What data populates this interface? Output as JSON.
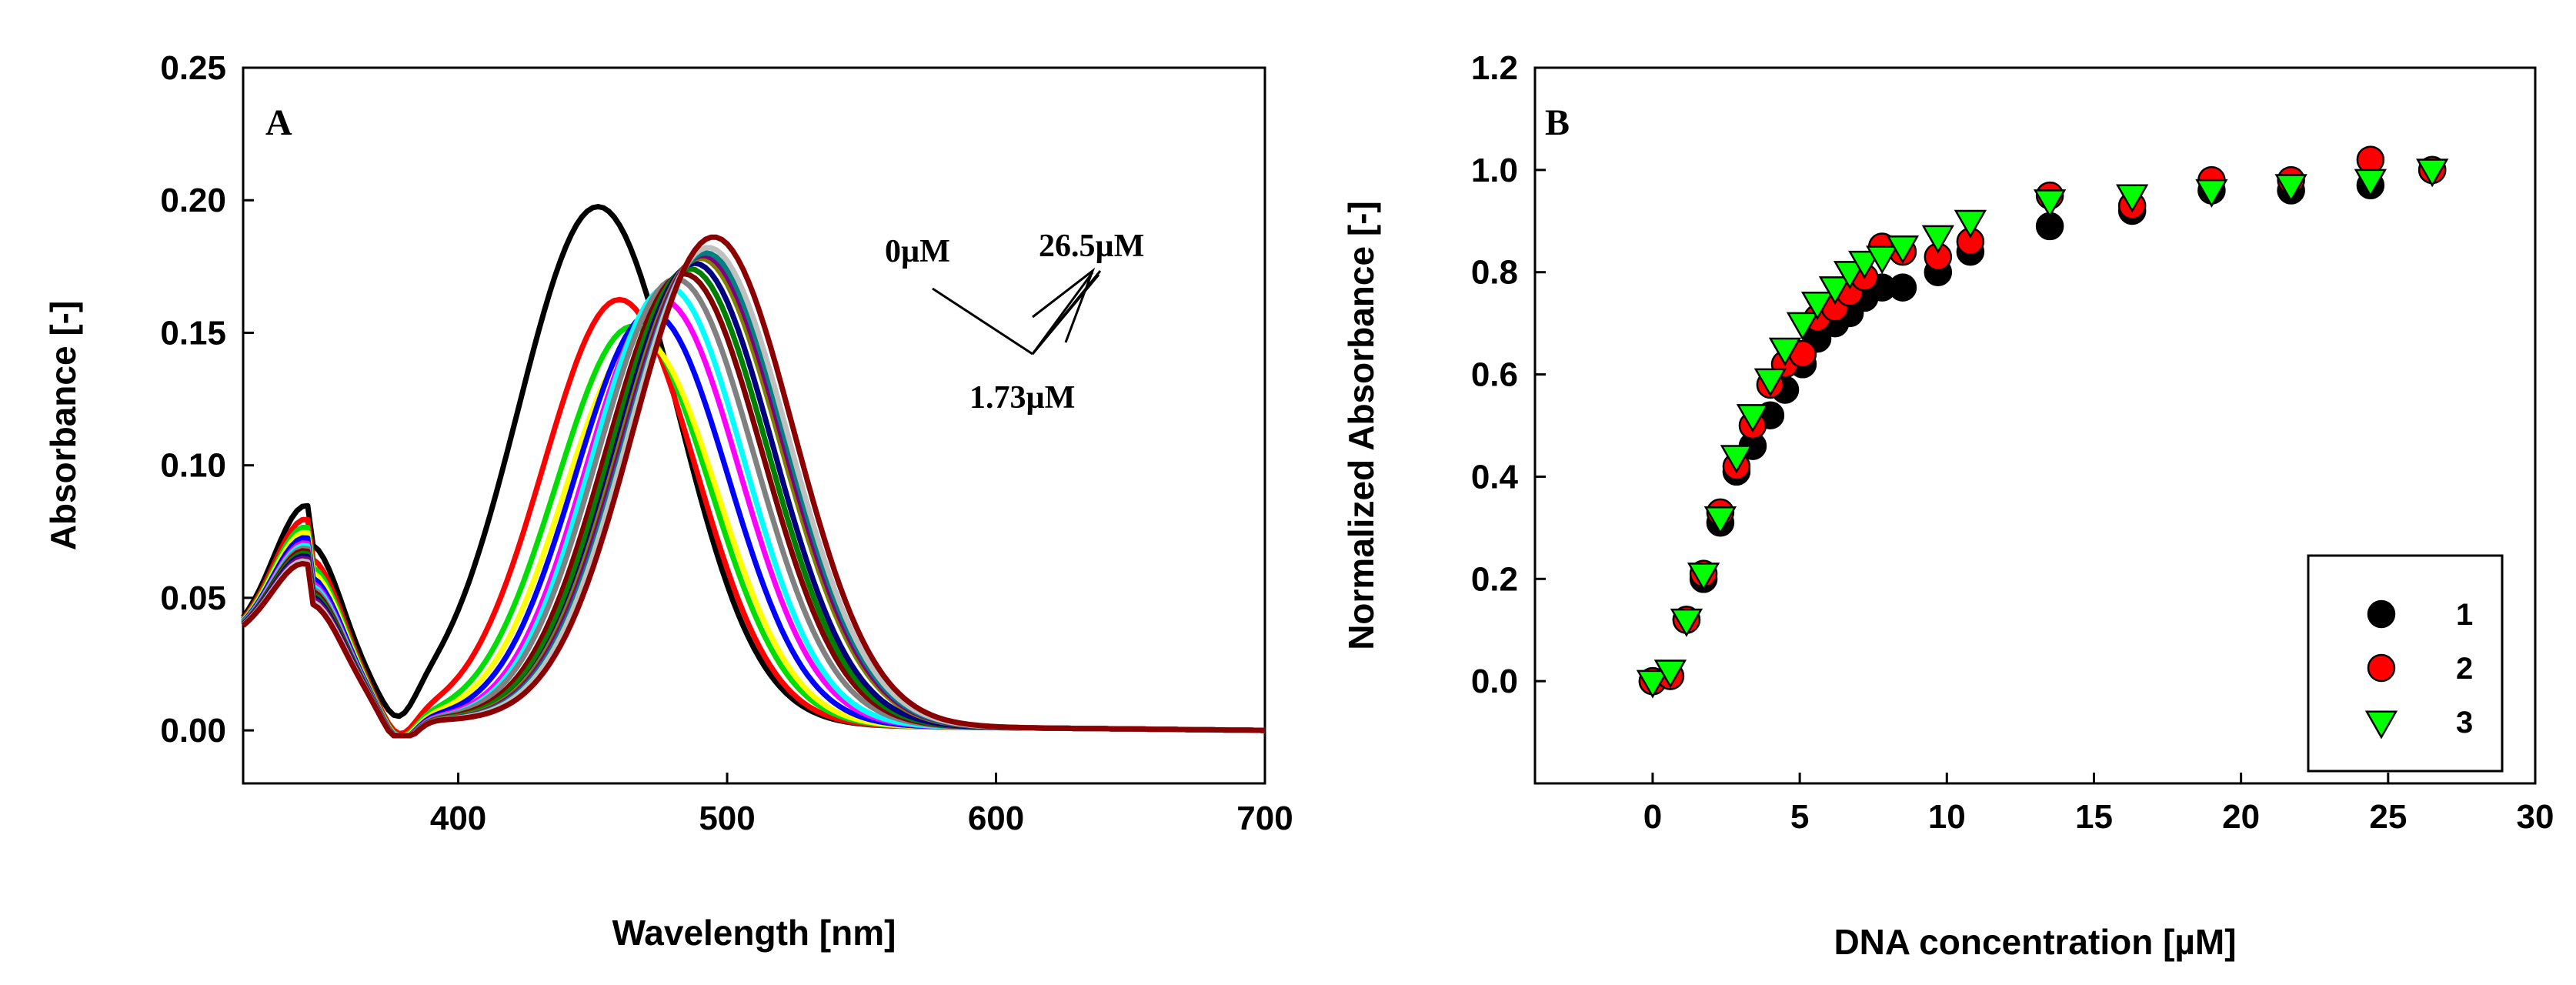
{
  "chart_data": [
    {
      "panel": "A",
      "type": "line",
      "xlabel": "Wavelength [nm]",
      "ylabel": "Absorbance [-]",
      "xlim": [
        320,
        700
      ],
      "ylim": [
        -0.02,
        0.25
      ],
      "xticks": [
        "400",
        "500",
        "600",
        "700"
      ],
      "yticks": [
        "0.00",
        "0.05",
        "0.10",
        "0.15",
        "0.20",
        "0.25"
      ],
      "annotations": [
        "0µM",
        "26.5µM",
        "1.73µM"
      ],
      "series": [
        {
          "color": "#000000",
          "peak": 452,
          "amp": 0.195,
          "width": 42,
          "base": 0.06
        },
        {
          "color": "#ff0000",
          "peak": 460,
          "amp": 0.16,
          "width": 40,
          "base": 0.055
        },
        {
          "color": "#00dd00",
          "peak": 465,
          "amp": 0.15,
          "width": 40,
          "base": 0.052
        },
        {
          "color": "#ffff00",
          "peak": 468,
          "amp": 0.145,
          "width": 40,
          "base": 0.05
        },
        {
          "color": "#0000ff",
          "peak": 472,
          "amp": 0.155,
          "width": 40,
          "base": 0.048
        },
        {
          "color": "#ff00ff",
          "peak": 476,
          "amp": 0.16,
          "width": 40,
          "base": 0.046
        },
        {
          "color": "#00ffff",
          "peak": 478,
          "amp": 0.165,
          "width": 40,
          "base": 0.045
        },
        {
          "color": "#808080",
          "peak": 481,
          "amp": 0.168,
          "width": 41,
          "base": 0.044
        },
        {
          "color": "#800000",
          "peak": 484,
          "amp": 0.17,
          "width": 41,
          "base": 0.043
        },
        {
          "color": "#008000",
          "peak": 486,
          "amp": 0.172,
          "width": 41,
          "base": 0.042
        },
        {
          "color": "#000080",
          "peak": 488,
          "amp": 0.174,
          "width": 41,
          "base": 0.041
        },
        {
          "color": "#808000",
          "peak": 490,
          "amp": 0.176,
          "width": 42,
          "base": 0.04
        },
        {
          "color": "#800080",
          "peak": 491,
          "amp": 0.177,
          "width": 42,
          "base": 0.04
        },
        {
          "color": "#008080",
          "peak": 492,
          "amp": 0.178,
          "width": 42,
          "base": 0.039
        },
        {
          "color": "#c0c0c0",
          "peak": 493,
          "amp": 0.18,
          "width": 42,
          "base": 0.039
        },
        {
          "color": "#8b0000",
          "peak": 495,
          "amp": 0.184,
          "width": 42,
          "base": 0.038
        }
      ]
    },
    {
      "panel": "B",
      "type": "scatter",
      "xlabel": "DNA concentration [µM]",
      "ylabel": "Normalized Absorbance [-]",
      "xlim": [
        -4,
        30
      ],
      "ylim": [
        -0.2,
        1.2
      ],
      "xticks": [
        "0",
        "5",
        "10",
        "15",
        "20",
        "25",
        "30"
      ],
      "yticks": [
        "0.0",
        "0.2",
        "0.4",
        "0.6",
        "0.8",
        "1.0",
        "1.2"
      ],
      "legend_position": "bottom-right",
      "series": [
        {
          "name": "1",
          "marker": "circle",
          "color": "#000000",
          "x": [
            0,
            0.6,
            1.15,
            1.73,
            2.3,
            2.85,
            3.4,
            4.0,
            4.5,
            5.1,
            5.6,
            6.2,
            6.7,
            7.2,
            7.8,
            8.5,
            9.7,
            10.8,
            13.5,
            16.3,
            19.0,
            21.7,
            24.4,
            26.5
          ],
          "y": [
            0,
            0.01,
            0.12,
            0.2,
            0.31,
            0.41,
            0.46,
            0.52,
            0.57,
            0.62,
            0.67,
            0.7,
            0.72,
            0.75,
            0.77,
            0.77,
            0.8,
            0.84,
            0.89,
            0.92,
            0.96,
            0.96,
            0.97,
            1.0
          ]
        },
        {
          "name": "2",
          "marker": "circle",
          "color": "#ff0000",
          "x": [
            0,
            0.6,
            1.15,
            1.73,
            2.3,
            2.85,
            3.4,
            4.0,
            4.5,
            5.1,
            5.6,
            6.2,
            6.7,
            7.2,
            7.8,
            8.5,
            9.7,
            10.8,
            13.5,
            16.3,
            19.0,
            21.7,
            24.4,
            26.5
          ],
          "y": [
            0,
            0.01,
            0.12,
            0.21,
            0.33,
            0.42,
            0.5,
            0.58,
            0.62,
            0.64,
            0.71,
            0.73,
            0.76,
            0.79,
            0.85,
            0.84,
            0.83,
            0.86,
            0.95,
            0.93,
            0.98,
            0.98,
            1.02,
            1.0
          ]
        },
        {
          "name": "3",
          "marker": "triangle-down",
          "color": "#00ff00",
          "x": [
            0,
            0.6,
            1.15,
            1.73,
            2.3,
            2.85,
            3.4,
            4.0,
            4.5,
            5.1,
            5.6,
            6.2,
            6.7,
            7.2,
            7.8,
            8.5,
            9.7,
            10.8,
            13.5,
            16.3,
            19.0,
            21.7,
            24.4,
            26.5
          ],
          "y": [
            0,
            0.02,
            0.12,
            0.21,
            0.32,
            0.44,
            0.52,
            0.59,
            0.65,
            0.7,
            0.74,
            0.77,
            0.8,
            0.82,
            0.83,
            0.85,
            0.87,
            0.9,
            0.94,
            0.95,
            0.96,
            0.97,
            0.98,
            1.0
          ]
        }
      ]
    }
  ]
}
